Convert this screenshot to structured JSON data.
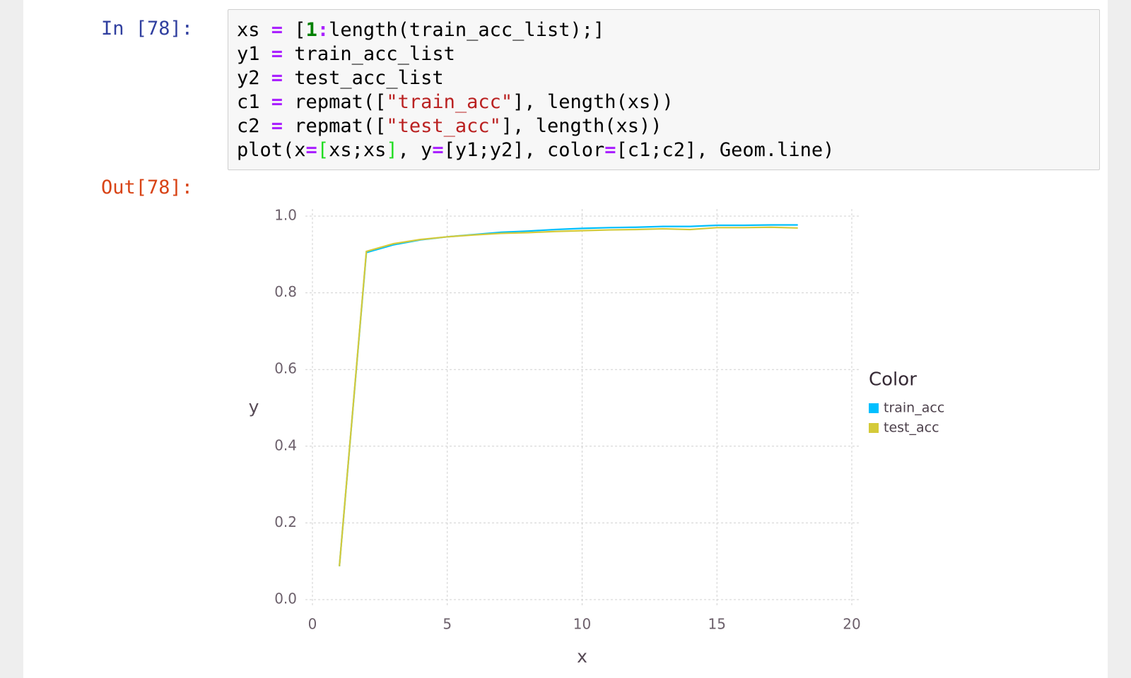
{
  "notebook": {
    "input_prompt": "In [78]:",
    "output_prompt": "Out[78]:",
    "code": [
      [
        {
          "text": "xs ",
          "color": "#000000"
        },
        {
          "text": "=",
          "color": "#aa22ff"
        },
        {
          "text": " [",
          "color": "#000000"
        },
        {
          "text": "1",
          "color": "#008000"
        },
        {
          "text": ":",
          "color": "#aa22ff"
        },
        {
          "text": "length(train_acc_list);]",
          "color": "#000000"
        }
      ],
      [
        {
          "text": "y1 ",
          "color": "#000000"
        },
        {
          "text": "=",
          "color": "#aa22ff"
        },
        {
          "text": " train_acc_list",
          "color": "#000000"
        }
      ],
      [
        {
          "text": "y2 ",
          "color": "#000000"
        },
        {
          "text": "=",
          "color": "#aa22ff"
        },
        {
          "text": " test_acc_list",
          "color": "#000000"
        }
      ],
      [
        {
          "text": "c1 ",
          "color": "#000000"
        },
        {
          "text": "=",
          "color": "#aa22ff"
        },
        {
          "text": " repmat([",
          "color": "#000000"
        },
        {
          "text": "\"train_acc\"",
          "color": "#ba2121"
        },
        {
          "text": "], length(xs))",
          "color": "#000000"
        }
      ],
      [
        {
          "text": "c2 ",
          "color": "#000000"
        },
        {
          "text": "=",
          "color": "#aa22ff"
        },
        {
          "text": " repmat([",
          "color": "#000000"
        },
        {
          "text": "\"test_acc\"",
          "color": "#ba2121"
        },
        {
          "text": "], length(xs))",
          "color": "#000000"
        }
      ],
      [
        {
          "text": "plot(x",
          "color": "#000000"
        },
        {
          "text": "=",
          "color": "#aa22ff"
        },
        {
          "text": "[",
          "color": "#22dd22"
        },
        {
          "text": "xs;xs",
          "color": "#000000"
        },
        {
          "text": "]",
          "color": "#22dd22"
        },
        {
          "text": ", y",
          "color": "#000000"
        },
        {
          "text": "=",
          "color": "#aa22ff"
        },
        {
          "text": "[y1;y2], color",
          "color": "#000000"
        },
        {
          "text": "=",
          "color": "#aa22ff"
        },
        {
          "text": "[c1;c2], Geom.line)",
          "color": "#000000"
        }
      ]
    ]
  },
  "chart_data": {
    "type": "line",
    "x_label": "x",
    "y_label": "y",
    "legend_title": "Color",
    "legend": "right",
    "grid": true,
    "x": [
      1,
      2,
      3,
      4,
      5,
      6,
      7,
      8,
      9,
      10,
      11,
      12,
      13,
      14,
      15,
      16,
      17,
      18
    ],
    "series": [
      {
        "name": "train_acc",
        "color": "#00bfff",
        "values": [
          0.087,
          0.905,
          0.925,
          0.938,
          0.946,
          0.952,
          0.958,
          0.961,
          0.965,
          0.968,
          0.97,
          0.971,
          0.973,
          0.973,
          0.976,
          0.976,
          0.977,
          0.977
        ]
      },
      {
        "name": "test_acc",
        "color": "#d4ca3a",
        "values": [
          0.087,
          0.908,
          0.928,
          0.939,
          0.946,
          0.951,
          0.955,
          0.957,
          0.96,
          0.962,
          0.964,
          0.965,
          0.967,
          0.965,
          0.97,
          0.97,
          0.971,
          0.969
        ]
      }
    ],
    "xlim": [
      0,
      20
    ],
    "xticks": [
      0,
      5,
      10,
      15,
      20
    ],
    "ylim": [
      0,
      1
    ],
    "yticks": [
      {
        "value": 0,
        "label": "0.0"
      },
      0.2,
      0.4,
      0.6,
      0.8,
      {
        "value": 1,
        "label": "1.0"
      }
    ]
  }
}
